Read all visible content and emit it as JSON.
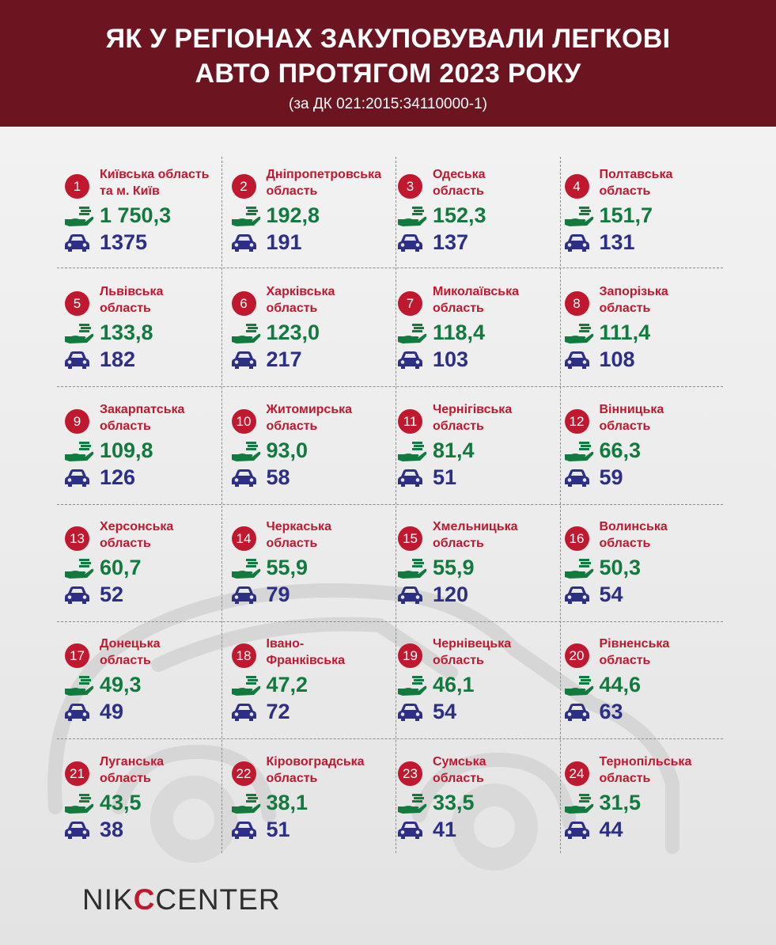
{
  "header": {
    "title_line1": "ЯК У РЕГІОНАХ ЗАКУПОВУВАЛИ ЛЕГКОВІ",
    "title_line2": "АВТО ПРОТЯГОМ 2023 РОКУ",
    "subtitle": "(за ДК 021:2015:34110000-1)"
  },
  "colors": {
    "header_bg": "#6c1520",
    "accent_red": "#c0182f",
    "amount_green": "#137a3f",
    "count_blue": "#2d2e86"
  },
  "icons": {
    "amount": "money-hand-icon",
    "count": "car-icon",
    "badge": "rank-badge"
  },
  "regions": [
    {
      "rank": "1",
      "name_line1": "Київська область",
      "name_line2": "та м. Київ",
      "amount": "1 750,3",
      "count": "1375"
    },
    {
      "rank": "2",
      "name_line1": "Дніпропетровська",
      "name_line2": "область",
      "amount": "192,8",
      "count": "191"
    },
    {
      "rank": "3",
      "name_line1": "Одеська",
      "name_line2": "область",
      "amount": "152,3",
      "count": "137"
    },
    {
      "rank": "4",
      "name_line1": "Полтавська",
      "name_line2": "область",
      "amount": "151,7",
      "count": "131"
    },
    {
      "rank": "5",
      "name_line1": "Львівська",
      "name_line2": "область",
      "amount": "133,8",
      "count": "182"
    },
    {
      "rank": "6",
      "name_line1": "Харківська",
      "name_line2": "область",
      "amount": "123,0",
      "count": "217"
    },
    {
      "rank": "7",
      "name_line1": "Миколаївська",
      "name_line2": "область",
      "amount": "118,4",
      "count": "103"
    },
    {
      "rank": "8",
      "name_line1": "Запорізька",
      "name_line2": "область",
      "amount": "111,4",
      "count": "108"
    },
    {
      "rank": "9",
      "name_line1": "Закарпатська",
      "name_line2": "область",
      "amount": "109,8",
      "count": "126"
    },
    {
      "rank": "10",
      "name_line1": "Житомирська",
      "name_line2": "область",
      "amount": "93,0",
      "count": "58"
    },
    {
      "rank": "11",
      "name_line1": "Чернігівська",
      "name_line2": "область",
      "amount": "81,4",
      "count": "51"
    },
    {
      "rank": "12",
      "name_line1": "Вінницька",
      "name_line2": "область",
      "amount": "66,3",
      "count": "59"
    },
    {
      "rank": "13",
      "name_line1": "Херсонська",
      "name_line2": "область",
      "amount": "60,7",
      "count": "52"
    },
    {
      "rank": "14",
      "name_line1": "Черкаська",
      "name_line2": "область",
      "amount": "55,9",
      "count": "79"
    },
    {
      "rank": "15",
      "name_line1": "Хмельницька",
      "name_line2": "область",
      "amount": "55,9",
      "count": "120"
    },
    {
      "rank": "16",
      "name_line1": "Волинська",
      "name_line2": "область",
      "amount": "50,3",
      "count": "54"
    },
    {
      "rank": "17",
      "name_line1": "Донецька",
      "name_line2": "область",
      "amount": "49,3",
      "count": "49"
    },
    {
      "rank": "18",
      "name_line1": "Івано-",
      "name_line2": "Франківська",
      "amount": "47,2",
      "count": "72"
    },
    {
      "rank": "19",
      "name_line1": "Чернівецька",
      "name_line2": "область",
      "amount": "46,1",
      "count": "54"
    },
    {
      "rank": "20",
      "name_line1": "Рівненська",
      "name_line2": "область",
      "amount": "44,6",
      "count": "63"
    },
    {
      "rank": "21",
      "name_line1": "Луганська",
      "name_line2": "область",
      "amount": "43,5",
      "count": "38"
    },
    {
      "rank": "22",
      "name_line1": "Кіровоградська",
      "name_line2": "область",
      "amount": "38,1",
      "count": "51"
    },
    {
      "rank": "23",
      "name_line1": "Сумська",
      "name_line2": "область",
      "amount": "33,5",
      "count": "41"
    },
    {
      "rank": "24",
      "name_line1": "Тернопільська",
      "name_line2": "область",
      "amount": "31,5",
      "count": "44"
    }
  ],
  "logo": {
    "part1": "NIK",
    "part2": "C",
    "part3": "CENTER"
  }
}
